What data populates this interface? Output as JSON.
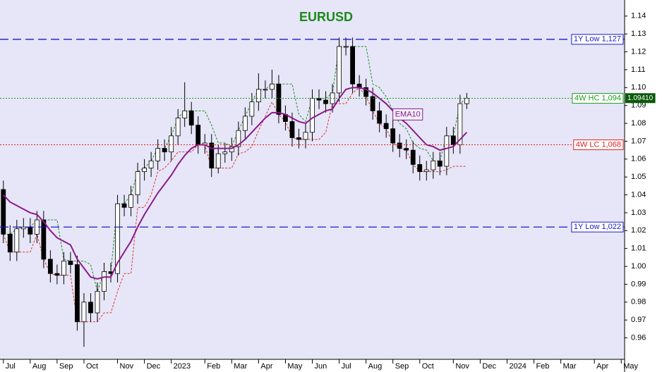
{
  "chart_data": {
    "type": "candlestick",
    "title": "EURUSD",
    "open": [
      1.043,
      1.018,
      1.008,
      1.021,
      1.022,
      1.018,
      1.026,
      1.004,
      0.996,
      0.995,
      1.003,
      1.001,
      0.969,
      0.98,
      0.974,
      0.986,
      0.997,
      0.996,
      1.035,
      1.033,
      1.04,
      1.053,
      1.055,
      1.059,
      1.066,
      1.064,
      1.073,
      1.083,
      1.087,
      1.079,
      1.068,
      1.069,
      1.055,
      1.063,
      1.064,
      1.067,
      1.076,
      1.084,
      1.092,
      1.099,
      1.099,
      1.102,
      1.085,
      1.081,
      1.072,
      1.071,
      1.075,
      1.094,
      1.093,
      1.091,
      1.097,
      1.123,
      1.123,
      1.102,
      1.1,
      1.095,
      1.087,
      1.08,
      1.077,
      1.069,
      1.066,
      1.065,
      1.057,
      1.053,
      1.054,
      1.059,
      1.056,
      1.073,
      1.068,
      1.091
    ],
    "high": [
      1.048,
      1.023,
      1.026,
      1.027,
      1.027,
      1.031,
      1.031,
      1.009,
      1.001,
      1.008,
      1.008,
      1.006,
      0.985,
      0.985,
      0.991,
      1.002,
      1.002,
      1.04,
      1.04,
      1.045,
      1.058,
      1.06,
      1.064,
      1.071,
      1.071,
      1.078,
      1.088,
      1.103,
      1.092,
      1.084,
      1.074,
      1.074,
      1.068,
      1.069,
      1.072,
      1.081,
      1.089,
      1.097,
      1.108,
      1.104,
      1.11,
      1.107,
      1.09,
      1.086,
      1.077,
      1.08,
      1.099,
      1.099,
      1.098,
      1.102,
      1.128,
      1.128,
      1.128,
      1.107,
      1.105,
      1.1,
      1.092,
      1.085,
      1.082,
      1.074,
      1.071,
      1.07,
      1.062,
      1.059,
      1.064,
      1.064,
      1.078,
      1.078,
      1.096,
      1.097
    ],
    "low": [
      1.013,
      1.003,
      1.003,
      1.016,
      1.013,
      1.013,
      0.999,
      0.991,
      0.99,
      0.99,
      0.996,
      0.964,
      0.955,
      0.969,
      0.969,
      0.981,
      0.991,
      0.991,
      1.028,
      1.028,
      1.035,
      1.048,
      1.05,
      1.054,
      1.059,
      1.059,
      1.068,
      1.078,
      1.074,
      1.063,
      1.063,
      1.05,
      1.052,
      1.058,
      1.059,
      1.062,
      1.071,
      1.079,
      1.087,
      1.094,
      1.094,
      1.08,
      1.076,
      1.067,
      1.066,
      1.066,
      1.07,
      1.088,
      1.086,
      1.086,
      1.092,
      1.118,
      1.097,
      1.095,
      1.09,
      1.082,
      1.075,
      1.072,
      1.064,
      1.061,
      1.06,
      1.052,
      1.048,
      1.048,
      1.049,
      1.051,
      1.051,
      1.063,
      1.063,
      1.088
    ],
    "close": [
      1.018,
      1.008,
      1.021,
      1.022,
      1.018,
      1.026,
      1.004,
      0.996,
      0.995,
      1.003,
      1.001,
      0.969,
      0.98,
      0.974,
      0.986,
      0.997,
      0.996,
      1.035,
      1.033,
      1.04,
      1.053,
      1.055,
      1.059,
      1.066,
      1.064,
      1.073,
      1.083,
      1.087,
      1.079,
      1.068,
      1.069,
      1.055,
      1.063,
      1.064,
      1.067,
      1.076,
      1.084,
      1.092,
      1.099,
      1.099,
      1.102,
      1.085,
      1.081,
      1.072,
      1.071,
      1.075,
      1.094,
      1.093,
      1.091,
      1.097,
      1.123,
      1.123,
      1.102,
      1.1,
      1.095,
      1.087,
      1.08,
      1.077,
      1.069,
      1.066,
      1.065,
      1.057,
      1.053,
      1.054,
      1.059,
      1.056,
      1.073,
      1.068,
      1.091,
      1.094
    ],
    "ema": {
      "name": "EMA10",
      "color": "#8b1a8b",
      "values": [
        1.04,
        1.036,
        1.034,
        1.032,
        1.03,
        1.029,
        1.025,
        1.02,
        1.016,
        1.014,
        1.012,
        1.004,
        0.999,
        0.994,
        0.993,
        0.994,
        0.994,
        1.002,
        1.008,
        1.014,
        1.022,
        1.029,
        1.035,
        1.041,
        1.046,
        1.051,
        1.057,
        1.062,
        1.066,
        1.068,
        1.068,
        1.066,
        1.066,
        1.066,
        1.066,
        1.068,
        1.071,
        1.075,
        1.079,
        1.083,
        1.086,
        1.086,
        1.085,
        1.083,
        1.081,
        1.08,
        1.083,
        1.085,
        1.087,
        1.088,
        1.094,
        1.099,
        1.1,
        1.1,
        1.099,
        1.097,
        1.094,
        1.091,
        1.087,
        1.083,
        1.08,
        1.076,
        1.072,
        1.068,
        1.067,
        1.065,
        1.066,
        1.067,
        1.071,
        1.075
      ]
    },
    "bands": [
      {
        "color": "#228b22",
        "values": [
          1.018,
          1.018,
          1.021,
          1.022,
          1.022,
          1.026,
          1.026,
          1.026,
          1.026,
          1.004,
          1.003,
          1.003,
          1.003,
          1.001,
          0.986,
          0.997,
          0.997,
          1.035,
          1.035,
          1.04,
          1.053,
          1.055,
          1.059,
          1.066,
          1.066,
          1.073,
          1.083,
          1.087,
          1.087,
          1.087,
          1.087,
          1.079,
          1.069,
          1.069,
          1.067,
          1.076,
          1.084,
          1.092,
          1.099,
          1.099,
          1.102,
          1.102,
          1.102,
          1.102,
          1.085,
          1.081,
          1.094,
          1.094,
          1.094,
          1.097,
          1.123,
          1.123,
          1.123,
          1.123,
          1.123,
          1.102,
          1.1,
          1.095,
          1.087,
          1.08,
          1.077,
          1.069,
          1.066,
          1.065,
          1.059,
          1.059,
          1.073,
          1.073,
          1.091,
          1.094
        ]
      },
      {
        "color": "#e03030",
        "values": [
          1.018,
          1.008,
          1.008,
          1.008,
          1.008,
          1.018,
          1.004,
          0.996,
          0.995,
          0.995,
          0.995,
          0.969,
          0.969,
          0.969,
          0.969,
          0.974,
          0.974,
          0.986,
          0.996,
          0.996,
          1.033,
          1.033,
          1.04,
          1.053,
          1.055,
          1.059,
          1.064,
          1.064,
          1.064,
          1.068,
          1.068,
          1.055,
          1.055,
          1.055,
          1.055,
          1.063,
          1.064,
          1.067,
          1.076,
          1.084,
          1.092,
          1.085,
          1.081,
          1.072,
          1.071,
          1.071,
          1.071,
          1.071,
          1.075,
          1.091,
          1.091,
          1.091,
          1.097,
          1.1,
          1.095,
          1.087,
          1.08,
          1.077,
          1.069,
          1.066,
          1.065,
          1.057,
          1.053,
          1.053,
          1.053,
          1.053,
          1.054,
          1.056,
          1.056,
          1.056
        ]
      }
    ],
    "levels": [
      {
        "label": "1Y Low 1,127",
        "value": 1.127,
        "color": "#1a1acc",
        "style": "dashed"
      },
      {
        "label": "4W HC 1,094",
        "value": 1.094,
        "color": "#1e9a1e",
        "style": "dotted"
      },
      {
        "label": "4W LC 1,068",
        "value": 1.068,
        "color": "#e02020",
        "style": "dotted"
      },
      {
        "label": "1Y Low 1,022",
        "value": 1.022,
        "color": "#1a1acc",
        "style": "dashed"
      }
    ],
    "last_price": {
      "label": "1.09410",
      "value": 1.0941
    },
    "ylim": [
      0.948,
      1.149
    ],
    "yticks": [
      0.96,
      0.97,
      0.98,
      0.99,
      {
        "value": 1.0,
        "label": "1.00"
      },
      1.01,
      1.02,
      1.03,
      1.04,
      1.05,
      1.06,
      1.07,
      1.08,
      1.09,
      {
        "value": 1.1,
        "label": "1.10"
      },
      1.11,
      1.12,
      1.13,
      1.14
    ],
    "xlim": [
      -0.5,
      92.5
    ],
    "xticks": [
      {
        "value": 0,
        "label": "Jul"
      },
      {
        "value": 4,
        "label": "Aug"
      },
      {
        "value": 8,
        "label": "Sep"
      },
      {
        "value": 12,
        "label": "Oct"
      },
      {
        "value": 17,
        "label": "Nov"
      },
      {
        "value": 21,
        "label": "Dec"
      },
      {
        "value": 25,
        "label": "2023"
      },
      {
        "value": 30,
        "label": "Feb"
      },
      {
        "value": 34,
        "label": "Mar"
      },
      {
        "value": 38,
        "label": "Apr"
      },
      {
        "value": 42,
        "label": "May"
      },
      {
        "value": 46,
        "label": "Jun"
      },
      {
        "value": 50,
        "label": "Jul"
      },
      {
        "value": 54,
        "label": "Aug"
      },
      {
        "value": 58,
        "label": "Sep"
      },
      {
        "value": 62,
        "label": "Oct"
      },
      {
        "value": 67,
        "label": "Nov"
      },
      {
        "value": 71,
        "label": "Dec"
      },
      {
        "value": 75,
        "label": "2024"
      },
      {
        "value": 79,
        "label": "Feb"
      },
      {
        "value": 83,
        "label": "Mar"
      },
      {
        "value": 88,
        "label": "Apr"
      },
      {
        "value": 92,
        "label": "May"
      }
    ],
    "up_color": "#ffffff",
    "down_color": "#000000"
  }
}
